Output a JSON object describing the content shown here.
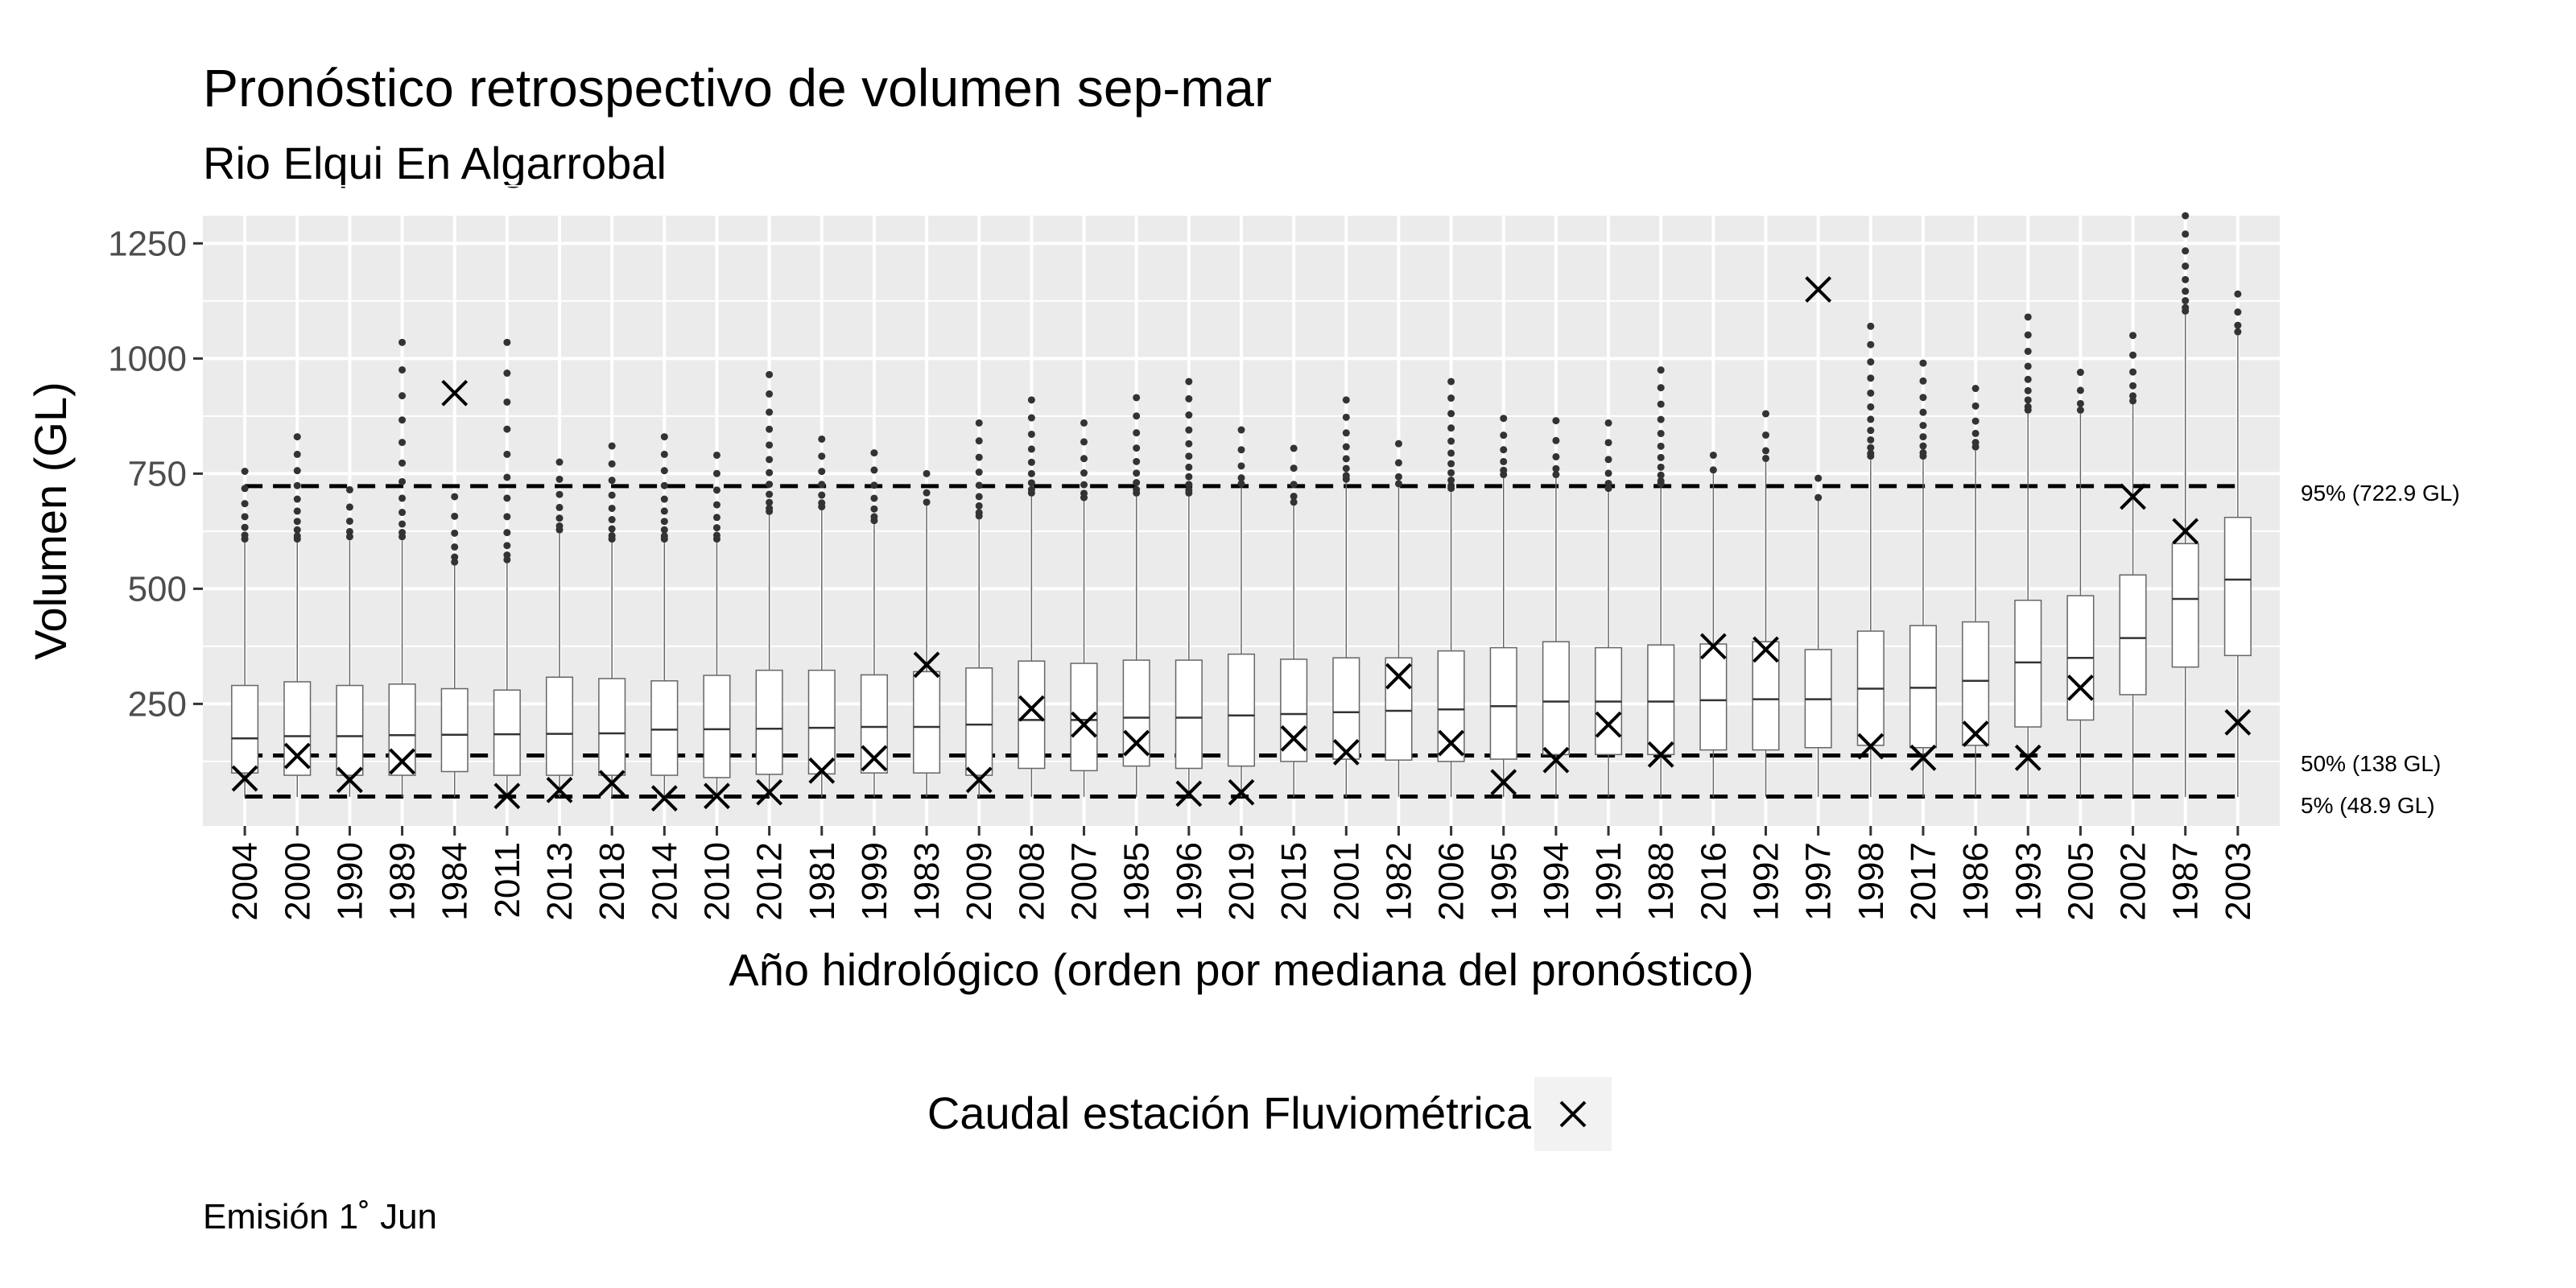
{
  "chart_data": {
    "type": "boxplot",
    "title": "Pronóstico retrospectivo de volumen sep-mar",
    "subtitle": "Rio Elqui En Algarrobal",
    "xlabel": "Año hidrológico (orden por mediana del pronóstico)",
    "ylabel": "Volumen (GL)",
    "ylim": [
      -15,
      1310
    ],
    "y_ticks": [
      250,
      500,
      750,
      1000,
      1250
    ],
    "grid": true,
    "categories": [
      "2004",
      "2000",
      "1990",
      "1989",
      "1984",
      "2011",
      "2013",
      "2018",
      "2014",
      "2010",
      "2012",
      "1981",
      "1999",
      "1983",
      "2009",
      "2008",
      "2007",
      "1985",
      "1996",
      "2019",
      "2015",
      "2001",
      "1982",
      "2006",
      "1995",
      "1994",
      "1991",
      "1988",
      "2016",
      "1992",
      "1997",
      "1998",
      "2017",
      "1986",
      "1993",
      "2005",
      "2002",
      "1987",
      "2003"
    ],
    "box_median": [
      175,
      180,
      180,
      182,
      183,
      184,
      185,
      186,
      194,
      195,
      196,
      198,
      200,
      200,
      205,
      215,
      215,
      220,
      220,
      225,
      228,
      232,
      235,
      238,
      245,
      255,
      255,
      255,
      258,
      260,
      260,
      283,
      285,
      300,
      340,
      350,
      393,
      478,
      520
    ],
    "box_q1": [
      100,
      95,
      95,
      95,
      103,
      95,
      95,
      95,
      95,
      90,
      97,
      98,
      100,
      100,
      95,
      110,
      105,
      115,
      110,
      115,
      125,
      130,
      128,
      125,
      130,
      140,
      140,
      140,
      150,
      150,
      155,
      160,
      155,
      160,
      200,
      215,
      270,
      330,
      355
    ],
    "box_q3": [
      290,
      298,
      290,
      293,
      283,
      280,
      308,
      305,
      300,
      312,
      323,
      323,
      313,
      320,
      328,
      343,
      338,
      345,
      345,
      358,
      347,
      350,
      350,
      365,
      372,
      385,
      372,
      378,
      380,
      385,
      368,
      408,
      420,
      428,
      475,
      485,
      530,
      598,
      655
    ],
    "box_upper": [
      600,
      600,
      605,
      605,
      550,
      555,
      620,
      600,
      600,
      600,
      660,
      670,
      640,
      680,
      650,
      700,
      690,
      700,
      700,
      720,
      680,
      730,
      720,
      710,
      740,
      740,
      710,
      720,
      750,
      775,
      690,
      780,
      780,
      800,
      880,
      880,
      900,
      1095,
      1050
    ],
    "box_lower": [
      48,
      48,
      48,
      48,
      48,
      48,
      48,
      48,
      48,
      48,
      48,
      48,
      48,
      48,
      48,
      48,
      48,
      48,
      48,
      48,
      48,
      48,
      48,
      48,
      48,
      48,
      48,
      48,
      48,
      48,
      48,
      48,
      48,
      48,
      48,
      48,
      48,
      48,
      48
    ],
    "outliers_top": [
      755,
      830,
      715,
      1035,
      700,
      1035,
      775,
      810,
      830,
      790,
      965,
      825,
      795,
      750,
      860,
      910,
      860,
      915,
      950,
      845,
      805,
      910,
      815,
      950,
      870,
      865,
      860,
      975,
      790,
      880,
      740,
      1070,
      990,
      935,
      1090,
      970,
      1050,
      1310,
      1140
    ],
    "observed": [
      88,
      137,
      85,
      125,
      925,
      50,
      63,
      78,
      45,
      50,
      58,
      105,
      132,
      335,
      85,
      240,
      205,
      165,
      55,
      58,
      175,
      145,
      310,
      165,
      80,
      128,
      205,
      140,
      375,
      368,
      1150,
      158,
      133,
      185,
      133,
      285,
      700,
      625,
      210
    ],
    "observed_series_name": "Caudal estación Fluviométrica",
    "reference_lines": [
      {
        "value": 722.9,
        "label": "95% (722.9 GL)"
      },
      {
        "value": 138,
        "label": "50% (138 GL)"
      },
      {
        "value": 48.9,
        "label": "5% (48.9 GL)"
      }
    ],
    "legend_position": "bottom"
  },
  "caption": "Emisión 1˚ Jun"
}
